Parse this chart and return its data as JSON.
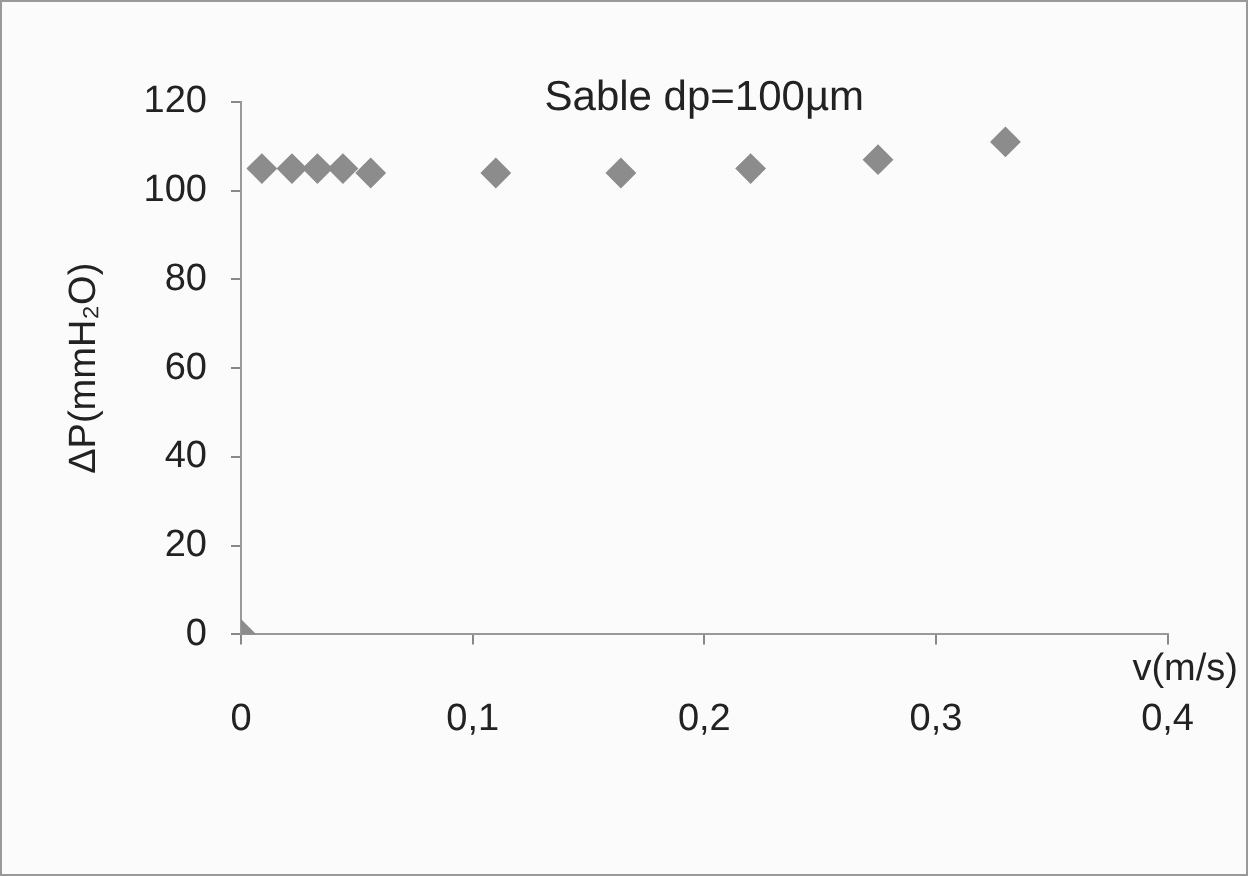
{
  "chart_data": {
    "type": "scatter",
    "title": "Sable dp=100µm",
    "xlabel": "v(m/s)",
    "ylabel": "ΔP(mmH₂O)",
    "x": [
      0,
      0.009,
      0.022,
      0.033,
      0.044,
      0.056,
      0.11,
      0.164,
      0.22,
      0.275,
      0.33
    ],
    "values": [
      0,
      105,
      105,
      105,
      105,
      104,
      104,
      104,
      105,
      107,
      111
    ],
    "color": "#8c8c8c",
    "marker": "diamond",
    "grid": false,
    "legend": false,
    "xlim": [
      0,
      0.4
    ],
    "xticks": [
      0,
      {
        "value": 0.1,
        "label": "0,1"
      },
      {
        "value": 0.2,
        "label": "0,2"
      },
      {
        "value": 0.3,
        "label": "0,3"
      },
      {
        "value": 0.4,
        "label": "0,4"
      }
    ],
    "ylim": [
      0,
      120
    ],
    "yticks": [
      0,
      20,
      40,
      60,
      80,
      100,
      120
    ]
  }
}
